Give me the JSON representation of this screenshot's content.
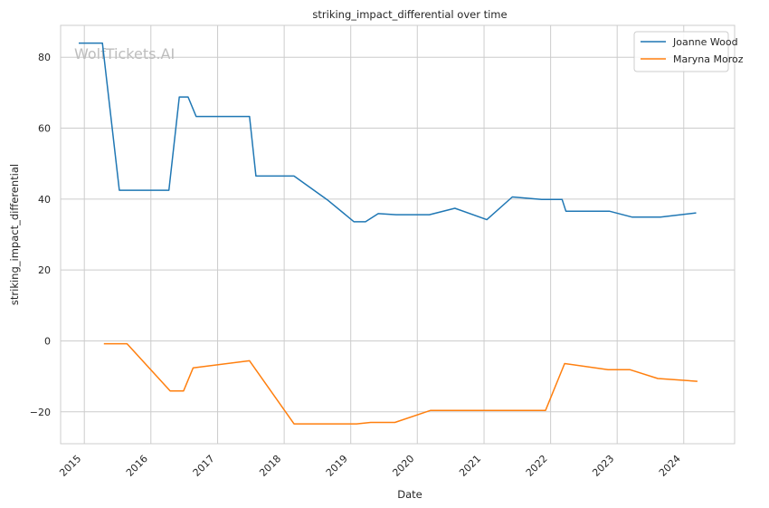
{
  "chart_data": {
    "type": "line",
    "title": "striking_impact_differential over time",
    "xlabel": "Date",
    "ylabel": "striking_impact_differential",
    "watermark": "WolfTickets.AI",
    "xlim": [
      "2014-08-24",
      "2024-10-06"
    ],
    "ylim": [
      -29,
      89
    ],
    "x_ticks": [
      "2015-01-01",
      "2016-01-01",
      "2017-01-01",
      "2018-01-01",
      "2019-01-01",
      "2020-01-01",
      "2021-01-01",
      "2022-01-01",
      "2023-01-01",
      "2024-01-01"
    ],
    "x_tick_labels": [
      "2015",
      "2016",
      "2017",
      "2018",
      "2019",
      "2020",
      "2021",
      "2022",
      "2023",
      "2024"
    ],
    "y_ticks": [
      -20,
      0,
      20,
      40,
      60,
      80
    ],
    "y_tick_labels": [
      "−20",
      "0",
      "20",
      "40",
      "60",
      "80"
    ],
    "grid": true,
    "legend_position": "top-right",
    "series": [
      {
        "name": "Joanne Wood",
        "color": "#1f77b4",
        "points": [
          [
            "2014-12-01",
            84
          ],
          [
            "2015-04-10",
            84
          ],
          [
            "2015-07-12",
            42.5
          ],
          [
            "2016-04-09",
            42.5
          ],
          [
            "2016-06-05",
            68.8
          ],
          [
            "2016-07-23",
            68.8
          ],
          [
            "2016-09-05",
            63.3
          ],
          [
            "2017-06-25",
            63.3
          ],
          [
            "2017-07-30",
            46.5
          ],
          [
            "2018-02-24",
            46.5
          ],
          [
            "2018-08-25",
            39.8
          ],
          [
            "2019-01-19",
            33.6
          ],
          [
            "2019-03-23",
            33.6
          ],
          [
            "2019-06-01",
            35.9
          ],
          [
            "2019-09-07",
            35.6
          ],
          [
            "2020-03-07",
            35.6
          ],
          [
            "2020-07-25",
            37.4
          ],
          [
            "2021-01-16",
            34.2
          ],
          [
            "2021-06-05",
            40.6
          ],
          [
            "2021-11-13",
            39.9
          ],
          [
            "2022-03-05",
            39.9
          ],
          [
            "2022-03-26",
            36.6
          ],
          [
            "2022-11-19",
            36.6
          ],
          [
            "2023-03-25",
            34.9
          ],
          [
            "2023-08-26",
            34.9
          ],
          [
            "2024-03-09",
            36.1
          ]
        ]
      },
      {
        "name": "Maryna Moroz",
        "color": "#ff7f0e",
        "points": [
          [
            "2015-04-18",
            -0.8
          ],
          [
            "2015-08-23",
            -0.8
          ],
          [
            "2016-04-16",
            -14.1
          ],
          [
            "2016-06-28",
            -14.1
          ],
          [
            "2016-08-20",
            -7.6
          ],
          [
            "2017-06-25",
            -5.6
          ],
          [
            "2018-02-24",
            -23.4
          ],
          [
            "2019-02-02",
            -23.4
          ],
          [
            "2019-04-20",
            -23.0
          ],
          [
            "2019-08-31",
            -23.0
          ],
          [
            "2020-03-14",
            -19.6
          ],
          [
            "2021-12-04",
            -19.6
          ],
          [
            "2022-03-19",
            -6.4
          ],
          [
            "2022-11-12",
            -8.1
          ],
          [
            "2023-03-11",
            -8.1
          ],
          [
            "2023-08-12",
            -10.6
          ],
          [
            "2024-03-16",
            -11.4
          ]
        ]
      }
    ]
  }
}
